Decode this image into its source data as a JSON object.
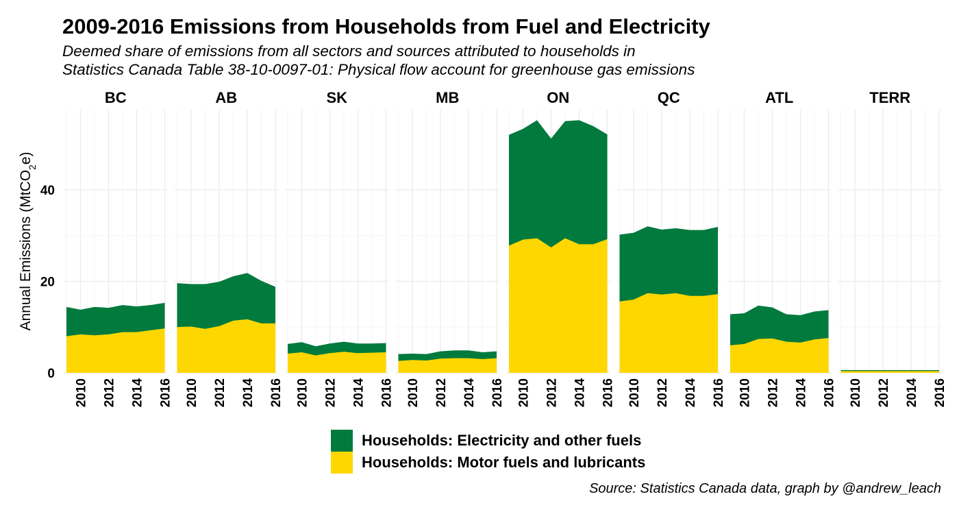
{
  "chart_data": {
    "type": "area",
    "title": "2009-2016 Emissions from Households from Fuel and Electricity",
    "subtitle_lines": [
      "Deemed share of emissions from all sectors and sources attributed to households in",
      "Statistics Canada Table 38-10-0097-01: Physical flow account for greenhouse gas emissions"
    ],
    "ylabel": "Annual Emissions (MtCO",
    "ylabel_sub": "2",
    "ylabel_suffix": "e)",
    "ylim": [
      0,
      57.5
    ],
    "y_ticks": [
      0,
      20,
      40
    ],
    "x": [
      2009,
      2010,
      2011,
      2012,
      2013,
      2014,
      2015,
      2016
    ],
    "x_ticks": [
      "2010",
      "2012",
      "2014",
      "2016"
    ],
    "grid": true,
    "stacked": true,
    "legend_position": "bottom",
    "source": "Source: Statistics Canada data, graph by @andrew_leach",
    "series_info": [
      {
        "name": "Households: Electricity and other fuels",
        "color": "#007A3D"
      },
      {
        "name": "Households: Motor fuels and lubricants",
        "color": "#FFD700"
      }
    ],
    "panels": [
      {
        "region": "BC",
        "motor": [
          8.0,
          8.4,
          8.2,
          8.4,
          8.9,
          8.9,
          9.3,
          9.7
        ],
        "electricity": [
          6.4,
          5.4,
          6.2,
          5.8,
          5.9,
          5.6,
          5.5,
          5.6
        ]
      },
      {
        "region": "AB",
        "motor": [
          10.0,
          10.1,
          9.6,
          10.2,
          11.4,
          11.7,
          10.8,
          10.8
        ],
        "electricity": [
          9.6,
          9.3,
          9.8,
          9.7,
          9.7,
          10.1,
          9.3,
          8.0
        ]
      },
      {
        "region": "SK",
        "motor": [
          4.2,
          4.5,
          3.8,
          4.3,
          4.6,
          4.3,
          4.4,
          4.5
        ],
        "electricity": [
          2.1,
          2.2,
          2.0,
          2.1,
          2.2,
          2.1,
          2.0,
          2.0
        ]
      },
      {
        "region": "MB",
        "motor": [
          2.6,
          2.8,
          2.7,
          3.1,
          3.2,
          3.2,
          3.0,
          3.2
        ],
        "electricity": [
          1.5,
          1.4,
          1.4,
          1.6,
          1.7,
          1.7,
          1.5,
          1.5
        ]
      },
      {
        "region": "ON",
        "motor": [
          27.8,
          29.1,
          29.4,
          27.4,
          29.4,
          28.1,
          28.1,
          29.2
        ],
        "electricity": [
          24.2,
          24.2,
          25.8,
          23.8,
          25.6,
          27.1,
          25.8,
          22.9
        ]
      },
      {
        "region": "QC",
        "motor": [
          15.6,
          16.0,
          17.4,
          17.1,
          17.4,
          16.8,
          16.8,
          17.2
        ],
        "electricity": [
          14.6,
          14.6,
          14.6,
          14.2,
          14.2,
          14.4,
          14.4,
          14.7
        ]
      },
      {
        "region": "ATL",
        "motor": [
          6.0,
          6.3,
          7.4,
          7.5,
          6.8,
          6.6,
          7.3,
          7.6
        ],
        "electricity": [
          6.8,
          6.7,
          7.3,
          6.8,
          6.0,
          6.0,
          6.1,
          6.1
        ]
      },
      {
        "region": "TERR",
        "motor": [
          0.4,
          0.4,
          0.4,
          0.4,
          0.4,
          0.4,
          0.4,
          0.4
        ],
        "electricity": [
          0.2,
          0.2,
          0.2,
          0.2,
          0.2,
          0.2,
          0.2,
          0.2
        ]
      }
    ]
  }
}
